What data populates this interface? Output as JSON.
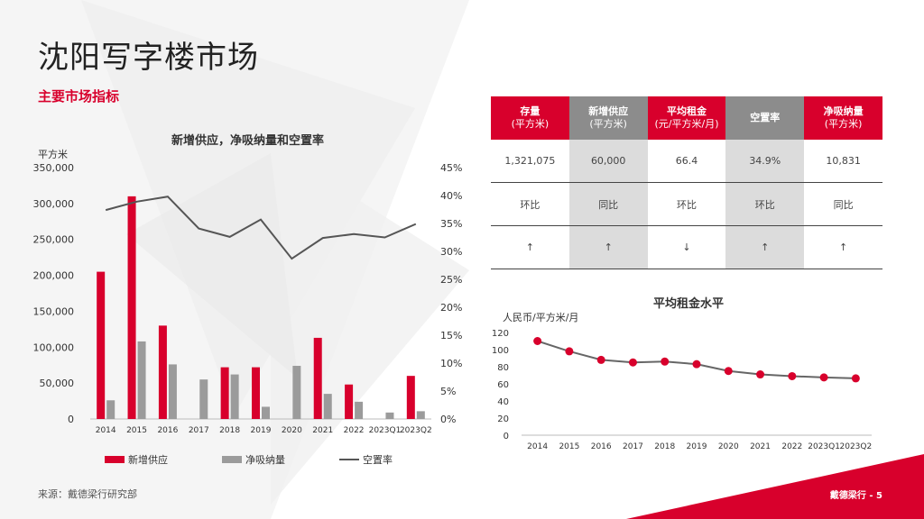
{
  "page": {
    "title": "沈阳写字楼市场",
    "section_title": "主要市场指标",
    "source": "来源：戴德梁行研究部",
    "footer": "戴德梁行 - 5"
  },
  "kpi_table": {
    "headers": [
      {
        "label": "存量",
        "sub": "(平方米)",
        "style": "red"
      },
      {
        "label": "新增供应",
        "sub": "(平方米)",
        "style": "grey"
      },
      {
        "label": "平均租金",
        "sub": "(元/平方米/月)",
        "style": "red"
      },
      {
        "label": "空置率",
        "sub": "",
        "style": "grey"
      },
      {
        "label": "净吸纳量",
        "sub": "(平方米)",
        "style": "red"
      }
    ],
    "values": [
      "1,321,075",
      "60,000",
      "66.4",
      "34.9%",
      "10,831"
    ],
    "compare": [
      "环比",
      "同比",
      "环比",
      "环比",
      "同比"
    ],
    "trend": [
      "↑",
      "↑",
      "↓",
      "↑",
      "↑"
    ]
  },
  "chart_data": [
    {
      "type": "bar",
      "title": "新增供应，净吸纳量和空置率",
      "ylabel": "平方米",
      "categories": [
        "2014",
        "2015",
        "2016",
        "2017",
        "2018",
        "2019",
        "2020",
        "2021",
        "2022",
        "2023Q1",
        "2023Q2"
      ],
      "ylim": [
        0,
        350000
      ],
      "yticks": [
        "0",
        "50,000",
        "100,000",
        "150,000",
        "200,000",
        "250,000",
        "300,000",
        "350,000"
      ],
      "y2lim": [
        0,
        45
      ],
      "y2ticks": [
        "0%",
        "5%",
        "10%",
        "15%",
        "20%",
        "25%",
        "30%",
        "35%",
        "40%",
        "45%"
      ],
      "series": [
        {
          "name": "新增供应",
          "kind": "bar",
          "color": "#d8002c",
          "values": [
            205000,
            310000,
            130000,
            0,
            72000,
            72000,
            0,
            113000,
            48000,
            0,
            60000
          ]
        },
        {
          "name": "净吸纳量",
          "kind": "bar",
          "color": "#9b9b9b",
          "values": [
            26000,
            108000,
            76000,
            55000,
            62000,
            17000,
            74000,
            35000,
            24000,
            9000,
            10831
          ]
        },
        {
          "name": "空置率",
          "kind": "line",
          "axis": "right",
          "color": "#555555",
          "values": [
            37.4,
            38.9,
            39.8,
            34.1,
            32.6,
            35.7,
            28.7,
            32.4,
            33.1,
            32.5,
            34.9
          ]
        }
      ],
      "legend": "bottom",
      "grid": false
    },
    {
      "type": "line",
      "title": "平均租金水平",
      "ylabel": "人民币/平方米/月",
      "categories": [
        "2014",
        "2015",
        "2016",
        "2017",
        "2018",
        "2019",
        "2020",
        "2021",
        "2022",
        "2023Q1",
        "2023Q2"
      ],
      "ylim": [
        0,
        120
      ],
      "yticks": [
        "0",
        "20",
        "40",
        "60",
        "80",
        "100",
        "120"
      ],
      "series": [
        {
          "name": "平均租金",
          "color": "#d8002c",
          "line_color": "#666666",
          "values": [
            110,
            98,
            88,
            85,
            86,
            83,
            75,
            71,
            69,
            67.5,
            66.4
          ]
        }
      ],
      "grid": false
    }
  ]
}
